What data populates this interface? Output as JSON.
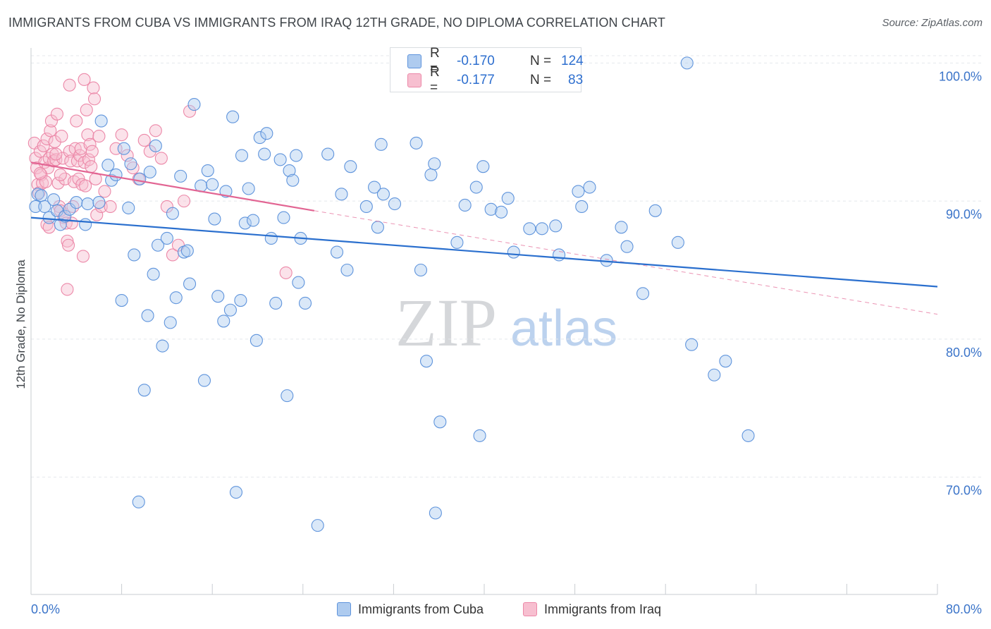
{
  "title": "IMMIGRANTS FROM CUBA VS IMMIGRANTS FROM IRAQ 12TH GRADE, NO DIPLOMA CORRELATION CHART",
  "source": "Source: ZipAtlas.com",
  "watermark": {
    "zip": "ZIP",
    "atlas": "atlas"
  },
  "legend": {
    "r_label": "R =",
    "n_label": "N =",
    "series": [
      {
        "name": "Immigrants from Cuba",
        "r": "-0.170",
        "n": "124"
      },
      {
        "name": "Immigrants from Iraq",
        "r": "-0.177",
        "n": "83"
      }
    ]
  },
  "colors": {
    "cuba_fill": "#aecbef",
    "cuba_stroke": "#5f94dc",
    "cuba_line": "#2a6fce",
    "iraq_fill": "#f7bfd0",
    "iraq_stroke": "#ec88a8",
    "iraq_line": "#e26593",
    "axis_text": "#3b74c9",
    "grid": "#e4e7eb"
  },
  "chart_data": {
    "type": "scatter",
    "title": "IMMIGRANTS FROM CUBA VS IMMIGRANTS FROM IRAQ 12TH GRADE, NO DIPLOMA CORRELATION CHART",
    "xlabel": "",
    "ylabel": "12th Grade, No Diploma",
    "xlim": [
      0,
      80
    ],
    "ylim": [
      61.5,
      101.5
    ],
    "x_tick_labels": [
      "0.0%",
      "80.0%"
    ],
    "y_ticks": [
      70,
      80,
      90,
      100
    ],
    "y_tick_labels": [
      "70.0%",
      "80.0%",
      "90.0%",
      "100.0%"
    ],
    "grid": true,
    "legend_position": "top-center",
    "series": [
      {
        "name": "Immigrants from Cuba",
        "trend": {
          "x": [
            0,
            80
          ],
          "y": [
            88.8,
            83.8
          ]
        },
        "points": [
          [
            0.4,
            89.6
          ],
          [
            0.6,
            90.5
          ],
          [
            0.9,
            90.4
          ],
          [
            1.2,
            89.6
          ],
          [
            1.6,
            88.8
          ],
          [
            2,
            90.1
          ],
          [
            2.3,
            89.3
          ],
          [
            2.6,
            88.3
          ],
          [
            3,
            88.9
          ],
          [
            3.4,
            89.4
          ],
          [
            4,
            89.9
          ],
          [
            4.8,
            88.3
          ],
          [
            5,
            89.8
          ],
          [
            6,
            89.9
          ],
          [
            6.2,
            95.8
          ],
          [
            6.8,
            92.6
          ],
          [
            7.1,
            91.5
          ],
          [
            7.5,
            91.9
          ],
          [
            8,
            82.8
          ],
          [
            8.2,
            93.8
          ],
          [
            8.6,
            89.5
          ],
          [
            8.8,
            92.7
          ],
          [
            9.1,
            86.1
          ],
          [
            9.6,
            91.6
          ],
          [
            9.5,
            68.2
          ],
          [
            10,
            76.3
          ],
          [
            10.5,
            92.1
          ],
          [
            10.3,
            81.7
          ],
          [
            10.8,
            84.7
          ],
          [
            11,
            94.0
          ],
          [
            11.2,
            86.8
          ],
          [
            11.6,
            79.5
          ],
          [
            12,
            87.3
          ],
          [
            12.3,
            81.2
          ],
          [
            12.5,
            89.1
          ],
          [
            12.8,
            83.0
          ],
          [
            13.2,
            91.8
          ],
          [
            13.5,
            86.3
          ],
          [
            13.8,
            86.4
          ],
          [
            14,
            84.0
          ],
          [
            14.4,
            97.0
          ],
          [
            15,
            91.1
          ],
          [
            15.3,
            77.0
          ],
          [
            15.6,
            92.2
          ],
          [
            16,
            91.2
          ],
          [
            16.2,
            88.7
          ],
          [
            16.5,
            83.1
          ],
          [
            17,
            81.3
          ],
          [
            17.2,
            90.7
          ],
          [
            17.6,
            82.1
          ],
          [
            17.8,
            96.1
          ],
          [
            18.1,
            68.9
          ],
          [
            18.5,
            82.8
          ],
          [
            18.6,
            93.3
          ],
          [
            18.9,
            88.4
          ],
          [
            19.2,
            90.9
          ],
          [
            19.6,
            88.6
          ],
          [
            19.9,
            79.9
          ],
          [
            20.2,
            94.6
          ],
          [
            20.6,
            93.4
          ],
          [
            20.8,
            94.9
          ],
          [
            21.2,
            87.3
          ],
          [
            21.6,
            82.6
          ],
          [
            22,
            93.0
          ],
          [
            22.3,
            88.8
          ],
          [
            22.6,
            75.9
          ],
          [
            22.8,
            92.2
          ],
          [
            23.1,
            91.5
          ],
          [
            23.4,
            93.3
          ],
          [
            23.6,
            84.1
          ],
          [
            23.8,
            87.3
          ],
          [
            24.2,
            82.6
          ],
          [
            25.3,
            66.5
          ],
          [
            26.2,
            93.4
          ],
          [
            27,
            86.3
          ],
          [
            27.4,
            90.5
          ],
          [
            27.9,
            85.0
          ],
          [
            28.2,
            92.5
          ],
          [
            29.6,
            89.6
          ],
          [
            30.3,
            91.0
          ],
          [
            30.6,
            88.1
          ],
          [
            30.9,
            94.1
          ],
          [
            31.1,
            90.5
          ],
          [
            32.1,
            89.8
          ],
          [
            34,
            94.2
          ],
          [
            34.4,
            85.0
          ],
          [
            34.9,
            78.4
          ],
          [
            35.3,
            91.9
          ],
          [
            35.6,
            92.7
          ],
          [
            35.7,
            67.4
          ],
          [
            36.1,
            74.0
          ],
          [
            37.6,
            87.0
          ],
          [
            38.3,
            89.7
          ],
          [
            39.3,
            91.0
          ],
          [
            39.6,
            73.0
          ],
          [
            39.9,
            92.5
          ],
          [
            40.6,
            89.4
          ],
          [
            41.5,
            89.2
          ],
          [
            42.1,
            90.2
          ],
          [
            42.6,
            86.3
          ],
          [
            44,
            88.0
          ],
          [
            45.1,
            88.0
          ],
          [
            46.3,
            88.2
          ],
          [
            46.6,
            86.1
          ],
          [
            48.3,
            90.7
          ],
          [
            48.6,
            89.6
          ],
          [
            49.3,
            91.0
          ],
          [
            50.8,
            85.7
          ],
          [
            52.1,
            88.1
          ],
          [
            52.6,
            86.7
          ],
          [
            54,
            83.3
          ],
          [
            55.1,
            89.3
          ],
          [
            57.1,
            87.0
          ],
          [
            58.3,
            79.6
          ],
          [
            60.3,
            77.4
          ],
          [
            61.3,
            78.4
          ],
          [
            63.3,
            73.0
          ],
          [
            57.9,
            100.0
          ]
        ]
      },
      {
        "name": "Immigrants from Iraq",
        "trend": {
          "x": [
            0,
            25
          ],
          "y": [
            92.8,
            89.3
          ]
        },
        "trend_extension": {
          "x": [
            25,
            80
          ],
          "y": [
            89.3,
            81.8
          ]
        },
        "points": [
          [
            0.3,
            94.2
          ],
          [
            0.4,
            93.1
          ],
          [
            0.5,
            92.4
          ],
          [
            0.6,
            91.2
          ],
          [
            0.7,
            90.6
          ],
          [
            0.8,
            93.6
          ],
          [
            0.9,
            91.9
          ],
          [
            1,
            91.3
          ],
          [
            1.1,
            94.0
          ],
          [
            1.2,
            92.8
          ],
          [
            1.3,
            91.4
          ],
          [
            1.4,
            94.5
          ],
          [
            1.5,
            92.4
          ],
          [
            1.6,
            93.1
          ],
          [
            1.7,
            95.1
          ],
          [
            1.8,
            95.8
          ],
          [
            1.9,
            93.4
          ],
          [
            2,
            92.9
          ],
          [
            2.1,
            94.3
          ],
          [
            2.2,
            93.0
          ],
          [
            2.3,
            96.3
          ],
          [
            2.4,
            91.3
          ],
          [
            2.5,
            89.6
          ],
          [
            2.6,
            89.3
          ],
          [
            2.7,
            94.7
          ],
          [
            2.8,
            93.1
          ],
          [
            2.9,
            88.8
          ],
          [
            3,
            91.6
          ],
          [
            3.1,
            88.4
          ],
          [
            3.2,
            87.1
          ],
          [
            3.3,
            86.8
          ],
          [
            3.4,
            93.6
          ],
          [
            3.5,
            92.9
          ],
          [
            3.6,
            88.4
          ],
          [
            3.7,
            89.6
          ],
          [
            3.8,
            91.4
          ],
          [
            3.9,
            93.8
          ],
          [
            4,
            95.8
          ],
          [
            4.1,
            92.9
          ],
          [
            4.2,
            91.6
          ],
          [
            4.3,
            93.3
          ],
          [
            4.4,
            93.8
          ],
          [
            4.5,
            91.2
          ],
          [
            4.6,
            86.0
          ],
          [
            4.7,
            92.8
          ],
          [
            4.8,
            91.1
          ],
          [
            4.9,
            96.6
          ],
          [
            5,
            94.8
          ],
          [
            5.1,
            93.0
          ],
          [
            5.2,
            94.1
          ],
          [
            5.3,
            92.5
          ],
          [
            5.4,
            93.6
          ],
          [
            5.5,
            98.2
          ],
          [
            5.6,
            97.4
          ],
          [
            5.7,
            91.6
          ],
          [
            5.8,
            89.0
          ],
          [
            6,
            94.7
          ],
          [
            6.2,
            89.6
          ],
          [
            6.5,
            90.7
          ],
          [
            7,
            89.6
          ],
          [
            7.5,
            93.8
          ],
          [
            8,
            94.8
          ],
          [
            8.5,
            93.3
          ],
          [
            9,
            92.4
          ],
          [
            9.5,
            91.6
          ],
          [
            10,
            94.4
          ],
          [
            10.5,
            93.6
          ],
          [
            11,
            95.1
          ],
          [
            11.5,
            93.1
          ],
          [
            12,
            89.6
          ],
          [
            12.5,
            86.1
          ],
          [
            13,
            86.8
          ],
          [
            13.5,
            90.0
          ],
          [
            14,
            96.5
          ],
          [
            3.2,
            83.6
          ],
          [
            2.6,
            91.9
          ],
          [
            1.4,
            88.3
          ],
          [
            0.8,
            92.0
          ],
          [
            3.4,
            98.4
          ],
          [
            4.7,
            98.8
          ],
          [
            2.2,
            93.4
          ],
          [
            22.5,
            84.8
          ],
          [
            1.6,
            88.1
          ]
        ]
      }
    ]
  }
}
